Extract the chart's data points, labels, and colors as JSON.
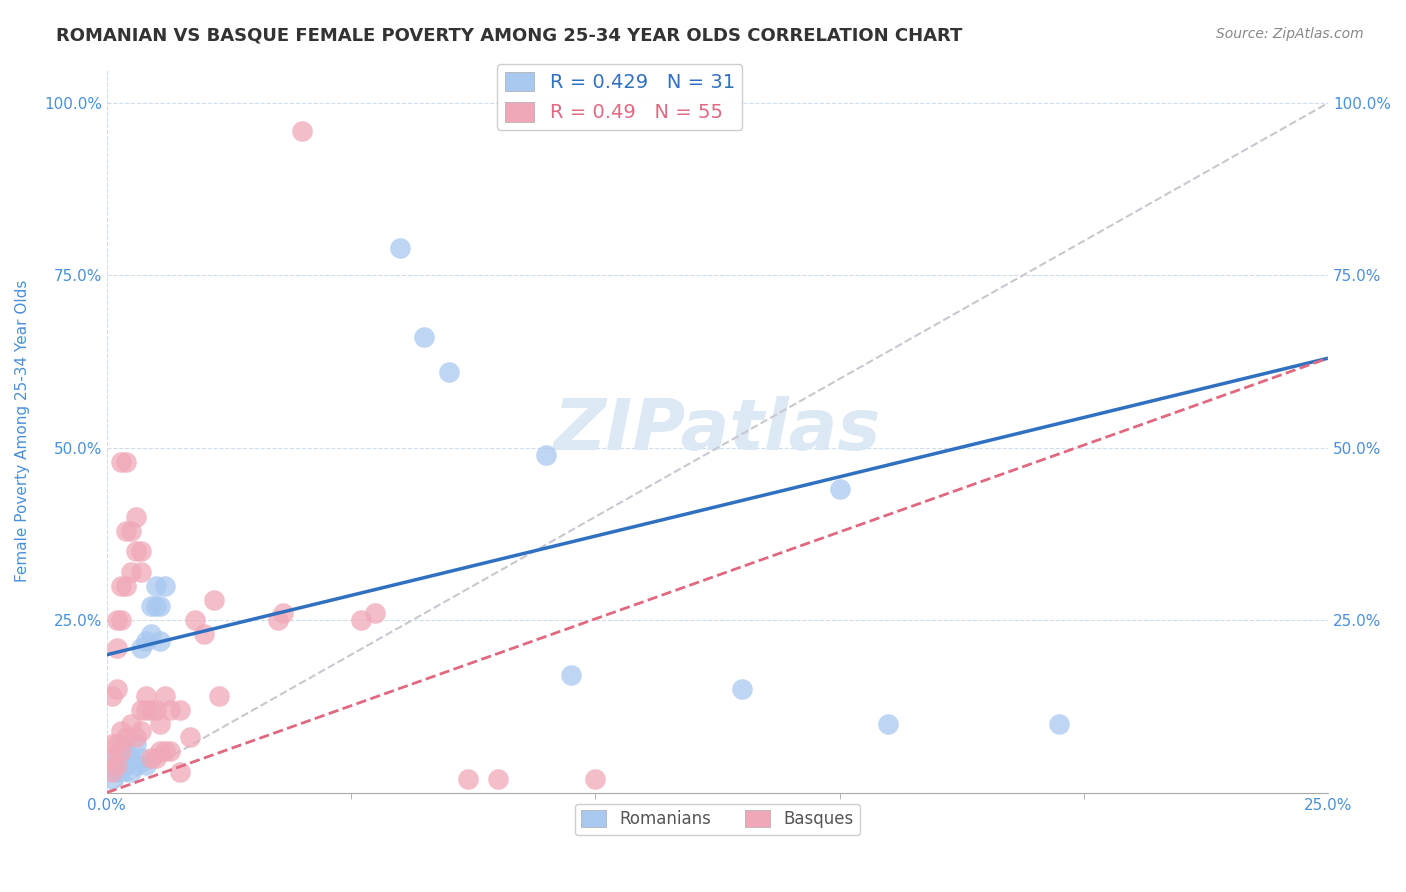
{
  "title": "ROMANIAN VS BASQUE FEMALE POVERTY AMONG 25-34 YEAR OLDS CORRELATION CHART",
  "source": "Source: ZipAtlas.com",
  "ylabel_label": "Female Poverty Among 25-34 Year Olds",
  "xlim": [
    0.0,
    0.25
  ],
  "ylim": [
    0.0,
    1.05
  ],
  "romanian_points": [
    [
      0.001,
      0.02
    ],
    [
      0.002,
      0.03
    ],
    [
      0.002,
      0.05
    ],
    [
      0.003,
      0.03
    ],
    [
      0.003,
      0.07
    ],
    [
      0.004,
      0.04
    ],
    [
      0.004,
      0.06
    ],
    [
      0.005,
      0.03
    ],
    [
      0.005,
      0.05
    ],
    [
      0.006,
      0.04
    ],
    [
      0.006,
      0.07
    ],
    [
      0.007,
      0.05
    ],
    [
      0.007,
      0.21
    ],
    [
      0.008,
      0.04
    ],
    [
      0.008,
      0.22
    ],
    [
      0.009,
      0.23
    ],
    [
      0.009,
      0.27
    ],
    [
      0.01,
      0.3
    ],
    [
      0.01,
      0.27
    ],
    [
      0.011,
      0.22
    ],
    [
      0.011,
      0.27
    ],
    [
      0.012,
      0.3
    ],
    [
      0.06,
      0.79
    ],
    [
      0.065,
      0.66
    ],
    [
      0.07,
      0.61
    ],
    [
      0.09,
      0.49
    ],
    [
      0.095,
      0.17
    ],
    [
      0.13,
      0.15
    ],
    [
      0.15,
      0.44
    ],
    [
      0.16,
      0.1
    ],
    [
      0.195,
      0.1
    ]
  ],
  "basque_points": [
    [
      0.001,
      0.03
    ],
    [
      0.001,
      0.05
    ],
    [
      0.001,
      0.07
    ],
    [
      0.001,
      0.14
    ],
    [
      0.002,
      0.04
    ],
    [
      0.002,
      0.07
    ],
    [
      0.002,
      0.15
    ],
    [
      0.002,
      0.21
    ],
    [
      0.002,
      0.25
    ],
    [
      0.003,
      0.06
    ],
    [
      0.003,
      0.09
    ],
    [
      0.003,
      0.25
    ],
    [
      0.003,
      0.3
    ],
    [
      0.003,
      0.48
    ],
    [
      0.004,
      0.08
    ],
    [
      0.004,
      0.3
    ],
    [
      0.004,
      0.38
    ],
    [
      0.004,
      0.48
    ],
    [
      0.005,
      0.1
    ],
    [
      0.005,
      0.32
    ],
    [
      0.005,
      0.38
    ],
    [
      0.006,
      0.08
    ],
    [
      0.006,
      0.35
    ],
    [
      0.006,
      0.4
    ],
    [
      0.007,
      0.09
    ],
    [
      0.007,
      0.12
    ],
    [
      0.007,
      0.32
    ],
    [
      0.007,
      0.35
    ],
    [
      0.008,
      0.12
    ],
    [
      0.008,
      0.14
    ],
    [
      0.009,
      0.05
    ],
    [
      0.009,
      0.12
    ],
    [
      0.01,
      0.05
    ],
    [
      0.01,
      0.12
    ],
    [
      0.011,
      0.06
    ],
    [
      0.011,
      0.1
    ],
    [
      0.012,
      0.06
    ],
    [
      0.012,
      0.14
    ],
    [
      0.013,
      0.06
    ],
    [
      0.013,
      0.12
    ],
    [
      0.015,
      0.03
    ],
    [
      0.015,
      0.12
    ],
    [
      0.017,
      0.08
    ],
    [
      0.018,
      0.25
    ],
    [
      0.02,
      0.23
    ],
    [
      0.022,
      0.28
    ],
    [
      0.023,
      0.14
    ],
    [
      0.035,
      0.25
    ],
    [
      0.036,
      0.26
    ],
    [
      0.04,
      0.96
    ],
    [
      0.052,
      0.25
    ],
    [
      0.055,
      0.26
    ],
    [
      0.074,
      0.02
    ],
    [
      0.08,
      0.02
    ],
    [
      0.1,
      0.02
    ]
  ],
  "romanian_R": 0.429,
  "romanian_N": 31,
  "basque_R": 0.49,
  "basque_N": 55,
  "romanian_scatter_color": "#a8c8f0",
  "basque_scatter_color": "#f0a8b8",
  "romanian_line_color": "#3070c0",
  "basque_line_color": "#e06880",
  "ref_line_color": "#c8c8d0",
  "background_color": "#ffffff",
  "title_fontsize": 13,
  "source_fontsize": 10,
  "tick_color": "#4a90d9",
  "grid_color": "#d0dce8",
  "watermark_text": "ZIPatlas",
  "watermark_color": "#dde8f5",
  "watermark_fontsize": 52,
  "ylabel_label_color": "#4a90d9"
}
